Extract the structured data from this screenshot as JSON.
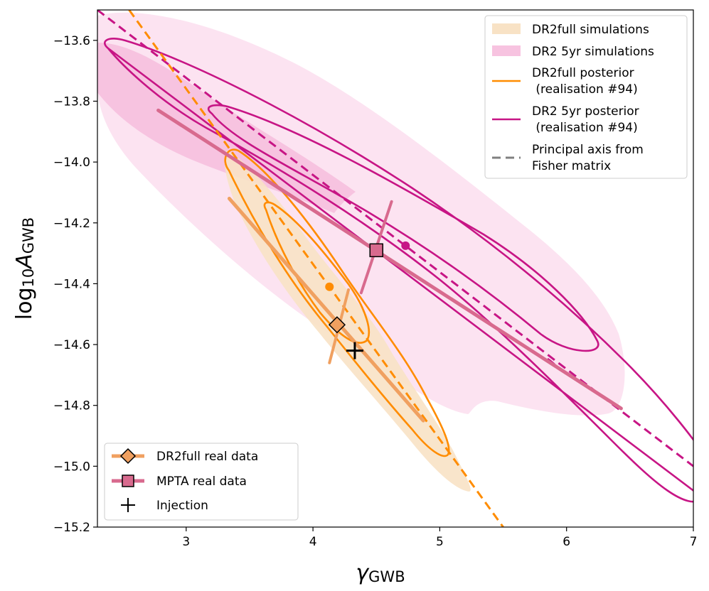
{
  "chart_data": {
    "type": "line",
    "title": "",
    "xlabel": "γ",
    "xlabel_sub": "GWB",
    "ylabel": "log",
    "ylabel_sub1": "10",
    "ylabel_mid": "A",
    "ylabel_sub2": "GWB",
    "xlim": [
      2.3,
      7.0
    ],
    "ylim": [
      -15.2,
      -13.5
    ],
    "xticks": [
      3,
      4,
      5,
      6,
      7
    ],
    "xtick_labels": [
      "3",
      "4",
      "5",
      "6",
      "7"
    ],
    "yticks": [
      -15.2,
      -15.0,
      -14.8,
      -14.6,
      -14.4,
      -14.2,
      -14.0,
      -13.8,
      -13.6
    ],
    "ytick_labels": [
      "−15.2",
      "−15.0",
      "−14.8",
      "−14.6",
      "−14.4",
      "−14.2",
      "−14.0",
      "−13.8",
      "−13.6"
    ],
    "grid": false,
    "colors": {
      "dr2full_fill": "#f6dcb8",
      "dr2full_line": "#ff8c00",
      "dr2full_real": "#f0a060",
      "dr2_5yr_fill": "#f9d0e8",
      "dr2_5yr_line": "#c71585",
      "mpta_real": "#d86a8e",
      "fisher_axis": "#808080"
    },
    "legend_top_right": [
      {
        "label": "DR2full simulations"
      },
      {
        "label": "DR2 5yr simulations"
      },
      {
        "label": "DR2full posterior",
        "label2": " (realisation #94)"
      },
      {
        "label": "DR2 5yr posterior",
        "label2": " (realisation #94)"
      },
      {
        "label": "Principal axis from",
        "label2": "Fisher matrix"
      }
    ],
    "legend_bottom_left": [
      {
        "label": "DR2full real data"
      },
      {
        "label": "MPTA real data"
      },
      {
        "label": "Injection"
      }
    ],
    "series": [
      {
        "name": "DR2full real data",
        "marker": "diamond",
        "center": [
          4.19,
          -14.535
        ],
        "major_axis": [
          [
            3.34,
            -14.12
          ],
          [
            4.87,
            -14.85
          ]
        ],
        "minor_axis": [
          [
            4.28,
            -14.42
          ],
          [
            4.13,
            -14.66
          ]
        ]
      },
      {
        "name": "MPTA real data",
        "marker": "square",
        "center": [
          4.5,
          -14.29
        ],
        "major_axis": [
          [
            2.78,
            -13.83
          ],
          [
            6.43,
            -14.81
          ]
        ],
        "minor_axis": [
          [
            4.62,
            -14.13
          ],
          [
            4.38,
            -14.43
          ]
        ]
      },
      {
        "name": "Injection",
        "marker": "plus",
        "center": [
          4.33,
          -14.62
        ]
      },
      {
        "name": "DR2full posterior",
        "mean": [
          4.13,
          -14.41
        ],
        "principal_axis": [
          [
            2.55,
            -13.5
          ],
          [
            5.5,
            -15.2
          ]
        ]
      },
      {
        "name": "DR2 5yr posterior",
        "mean": [
          4.73,
          -14.275
        ],
        "principal_axis": [
          [
            2.3,
            -13.5
          ],
          [
            7.0,
            -15.0
          ]
        ]
      }
    ]
  }
}
